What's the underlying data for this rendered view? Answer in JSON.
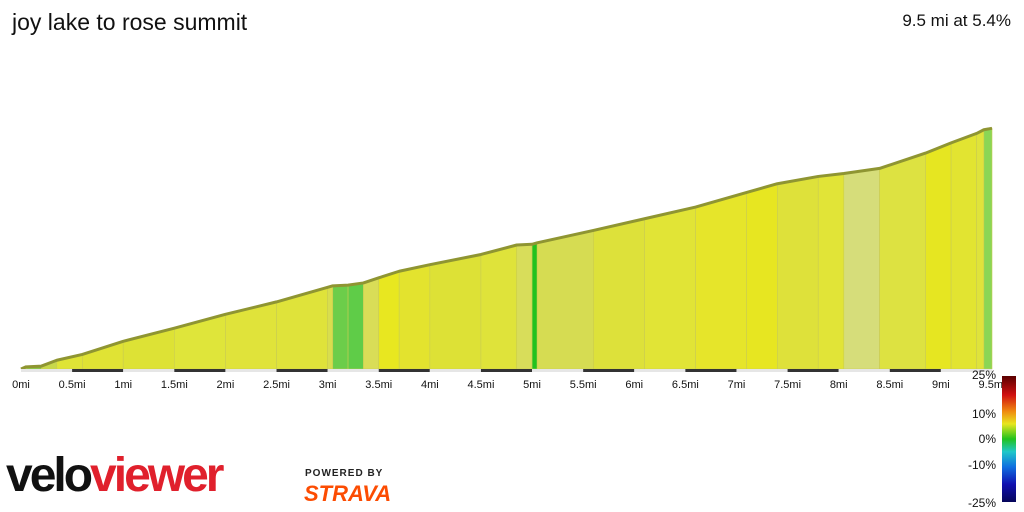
{
  "title": "joy lake to rose summit",
  "summary": "9.5 mi at 5.4%",
  "brand": {
    "velo": "velo",
    "viewer": "viewer",
    "powered_by": "POWERED BY",
    "strava": "STRAVA"
  },
  "legend": {
    "labels": [
      "25%",
      "10%",
      "0%",
      "-10%",
      "-25%"
    ]
  },
  "chart_data": {
    "type": "area",
    "xlabel": "",
    "ylabel": "",
    "xlim": [
      0,
      9.5
    ],
    "x_ticks": [
      "0mi",
      "0.5mi",
      "1mi",
      "1.5mi",
      "2mi",
      "2.5mi",
      "3mi",
      "3.5mi",
      "4mi",
      "4.5mi",
      "5mi",
      "5.5mi",
      "6mi",
      "6.5mi",
      "7mi",
      "7.5mi",
      "8mi",
      "8.5mi",
      "9mi",
      "9.5mi"
    ],
    "profile_x": [
      0,
      0.05,
      0.2,
      0.35,
      0.6,
      1.0,
      1.5,
      2.0,
      2.5,
      3.0,
      3.05,
      3.2,
      3.35,
      3.5,
      3.7,
      4.0,
      4.5,
      4.85,
      5.0,
      5.05,
      5.6,
      6.1,
      6.6,
      7.1,
      7.4,
      7.8,
      8.05,
      8.4,
      8.85,
      9.1,
      9.35,
      9.42,
      9.5
    ],
    "profile_elev": [
      0,
      3,
      4,
      12,
      20,
      38,
      56,
      75,
      92,
      112,
      114,
      115,
      118,
      125,
      134,
      143,
      157,
      170,
      171,
      173,
      190,
      206,
      222,
      242,
      254,
      264,
      268,
      275,
      296,
      310,
      323,
      328,
      330
    ],
    "grade_colors": [
      "#76c244",
      "#7ac142",
      "#c8d84a",
      "#dfe436",
      "#e0e334",
      "#dde235",
      "#dfe53a",
      "#e0e33a",
      "#dfe33a",
      "#d8de4e",
      "#6ccd4a",
      "#5fcc48",
      "#d9dd57",
      "#e8e720",
      "#e3e32e",
      "#dde136",
      "#dfe33a",
      "#d8dd5a",
      "#22c21e",
      "#d6dc52",
      "#dde13a",
      "#e1e436",
      "#e6e52a",
      "#e7e621",
      "#dee13a",
      "#e1e437",
      "#d6dd7a",
      "#dde241",
      "#e6e621",
      "#e2e431",
      "#dfe33b",
      "#8ad655"
    ],
    "ylim": [
      0,
      340
    ]
  }
}
